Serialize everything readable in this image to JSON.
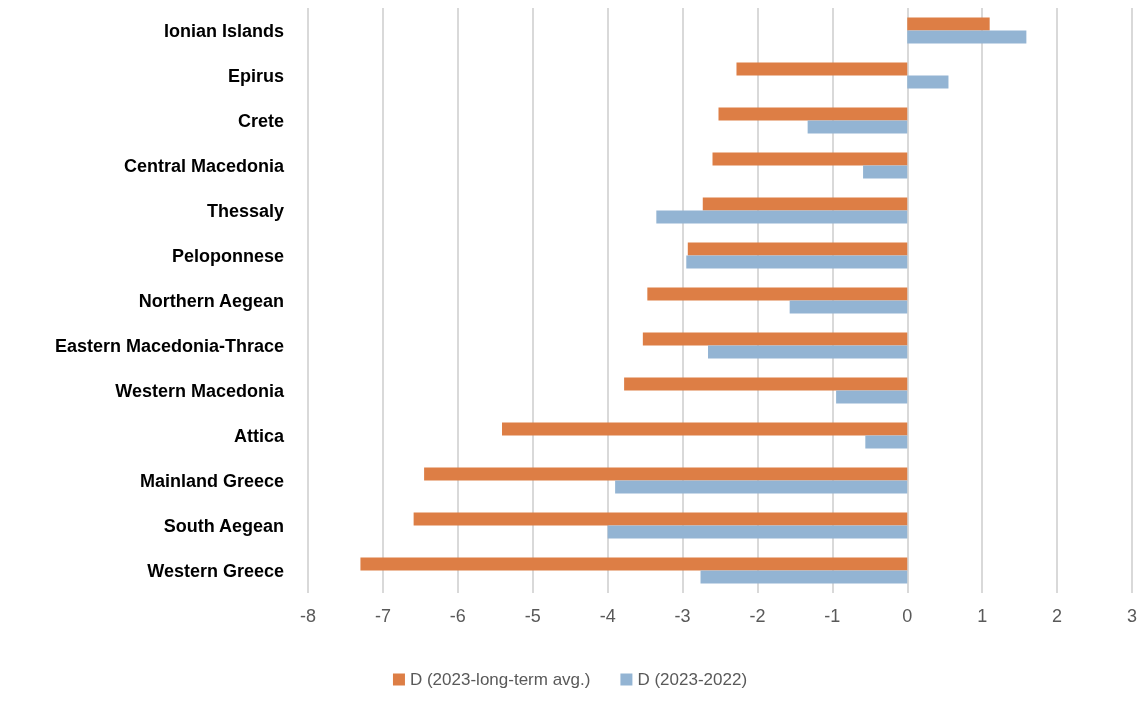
{
  "chart_data": {
    "type": "bar",
    "orientation": "horizontal",
    "categories": [
      "Ionian Islands",
      "Epirus",
      "Crete",
      "Central Macedonia",
      "Thessaly",
      "Peloponnese",
      "Northern Aegean",
      "Eastern Macedonia-Thrace",
      "Western Macedonia",
      "Attica",
      "Mainland Greece",
      "South Aegean",
      "Western Greece"
    ],
    "series": [
      {
        "name": "D (2023-long-term avg.)",
        "color": "#dd7e45",
        "values": [
          1.1,
          -2.28,
          -2.52,
          -2.6,
          -2.73,
          -2.93,
          -3.47,
          -3.53,
          -3.78,
          -5.41,
          -6.45,
          -6.59,
          -7.3
        ]
      },
      {
        "name": "D (2023-2022)",
        "color": "#93b4d3",
        "values": [
          1.59,
          0.55,
          -1.33,
          -0.59,
          -3.35,
          -2.95,
          -1.57,
          -2.66,
          -0.95,
          -0.56,
          -3.9,
          -4.0,
          -2.76
        ]
      }
    ],
    "xlim": [
      -8,
      3
    ],
    "xticks": [
      -8,
      -7,
      -6,
      -5,
      -4,
      -3,
      -2,
      -1,
      0,
      1,
      2,
      3
    ],
    "grid": "x",
    "legend": "bottom"
  }
}
